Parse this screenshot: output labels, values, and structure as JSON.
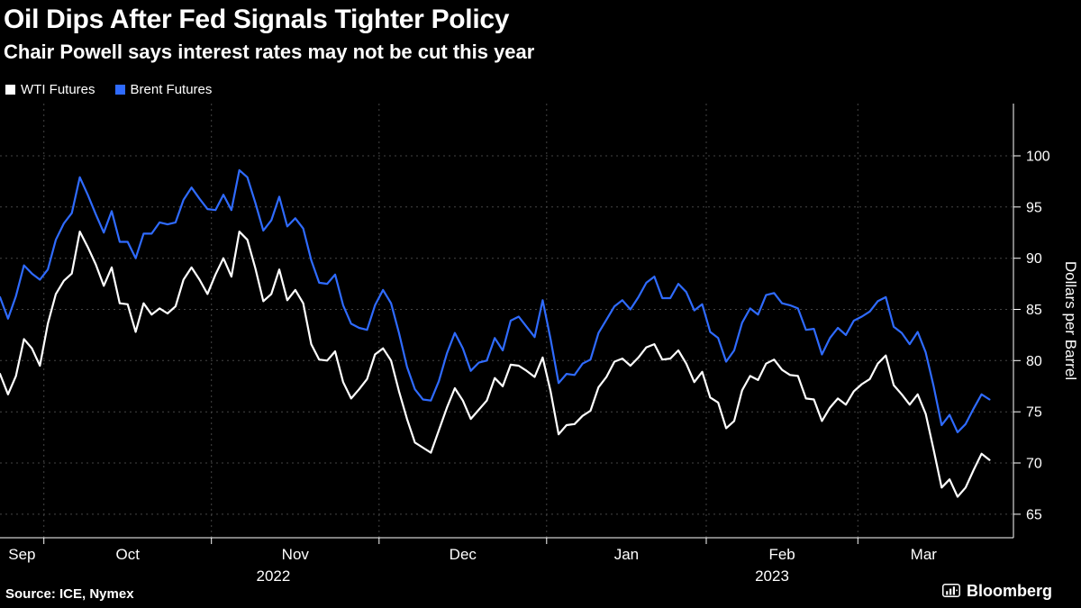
{
  "footer": {
    "source": "Source: ICE, Nymex",
    "brand": "Bloomberg"
  },
  "chart_data": {
    "type": "line",
    "title": "Oil Dips After Fed Signals Tighter Policy",
    "subtitle": "Chair Powell says interest rates may not be cut this year",
    "ylabel": "Dollars per Barrel",
    "ylim": [
      62.7,
      105.1
    ],
    "y_ticks": [
      65,
      70,
      75,
      80,
      85,
      90,
      95,
      100
    ],
    "grid": "dashed",
    "legend_position": "top-left",
    "x_unit": "trading days, late Sep 2022 through late Mar 2023",
    "x_extent": 127,
    "x_boundaries": [
      5.5,
      26.5,
      47.5,
      68.5,
      88.5,
      107.5
    ],
    "x_month_labels": [
      {
        "text": "Sep",
        "center": 2.75
      },
      {
        "text": "Oct",
        "center": 16
      },
      {
        "text": "Nov",
        "center": 37
      },
      {
        "text": "Dec",
        "center": 58
      },
      {
        "text": "Jan",
        "center": 78.5
      },
      {
        "text": "Feb",
        "center": 98
      },
      {
        "text": "Mar",
        "center": 115.75
      }
    ],
    "x_year_labels": [
      {
        "text": "2022",
        "center": 34.25
      },
      {
        "text": "2023",
        "center": 96.75
      }
    ],
    "series": [
      {
        "name": "WTI Futures",
        "color": "#ffffff",
        "values": [
          78.7,
          76.7,
          78.5,
          82.1,
          81.2,
          79.5,
          83.6,
          86.5,
          87.8,
          88.5,
          92.6,
          91.1,
          89.4,
          87.3,
          89.1,
          85.6,
          85.5,
          82.8,
          85.6,
          84.5,
          85.1,
          84.6,
          85.3,
          87.9,
          89.1,
          87.9,
          86.5,
          88.4,
          90.0,
          88.2,
          92.6,
          91.8,
          89.0,
          85.8,
          86.5,
          88.9,
          85.9,
          86.9,
          85.6,
          81.6,
          80.1,
          80.0,
          80.9,
          77.9,
          76.3,
          77.2,
          78.2,
          80.6,
          81.2,
          80.0,
          77.0,
          74.3,
          72.0,
          71.5,
          71.0,
          73.2,
          75.4,
          77.3,
          76.1,
          74.3,
          75.2,
          76.1,
          78.3,
          77.5,
          79.6,
          79.5,
          79.0,
          78.4,
          80.3,
          77.0,
          72.8,
          73.7,
          73.8,
          74.6,
          75.1,
          77.4,
          78.4,
          79.9,
          80.2,
          79.5,
          80.3,
          81.3,
          81.6,
          80.1,
          80.2,
          81.0,
          79.7,
          77.9,
          78.9,
          76.4,
          75.9,
          73.4,
          74.1,
          77.1,
          78.5,
          78.1,
          79.7,
          80.1,
          79.1,
          78.6,
          78.5,
          76.3,
          76.2,
          74.1,
          75.4,
          76.3,
          75.7,
          77.0,
          77.7,
          78.2,
          79.7,
          80.5,
          77.6,
          76.7,
          75.7,
          76.7,
          74.8,
          71.3,
          67.6,
          68.4,
          66.7,
          67.6,
          69.3,
          70.9,
          70.3
        ]
      },
      {
        "name": "Brent Futures",
        "color": "#2f6bff",
        "values": [
          86.2,
          84.1,
          86.3,
          89.3,
          88.5,
          87.9,
          88.9,
          91.8,
          93.4,
          94.4,
          97.9,
          96.2,
          94.3,
          92.5,
          94.6,
          91.6,
          91.6,
          90.0,
          92.4,
          92.4,
          93.5,
          93.3,
          93.5,
          95.7,
          96.9,
          95.8,
          94.8,
          94.7,
          96.2,
          94.7,
          98.6,
          97.9,
          95.4,
          92.7,
          93.7,
          96.0,
          93.1,
          93.9,
          92.9,
          89.8,
          87.6,
          87.5,
          88.4,
          85.4,
          83.6,
          83.2,
          83.0,
          85.4,
          86.9,
          85.6,
          82.7,
          79.4,
          77.2,
          76.2,
          76.1,
          78.0,
          80.7,
          82.7,
          81.2,
          79.0,
          79.8,
          80.0,
          82.2,
          81.0,
          83.9,
          84.3,
          83.3,
          82.3,
          85.9,
          82.1,
          77.8,
          78.7,
          78.6,
          79.7,
          80.1,
          82.7,
          84.0,
          85.3,
          85.9,
          85.0,
          86.2,
          87.6,
          88.2,
          86.1,
          86.1,
          87.5,
          86.7,
          84.9,
          85.5,
          82.8,
          82.2,
          79.9,
          81.0,
          83.7,
          85.1,
          84.5,
          86.4,
          86.6,
          85.6,
          85.4,
          85.1,
          83.0,
          83.1,
          80.6,
          82.2,
          83.2,
          82.5,
          83.9,
          84.3,
          84.8,
          85.8,
          86.2,
          83.3,
          82.7,
          81.6,
          82.8,
          80.8,
          77.5,
          73.7,
          74.7,
          73.0,
          73.8,
          75.3,
          76.7,
          76.2
        ]
      }
    ]
  }
}
